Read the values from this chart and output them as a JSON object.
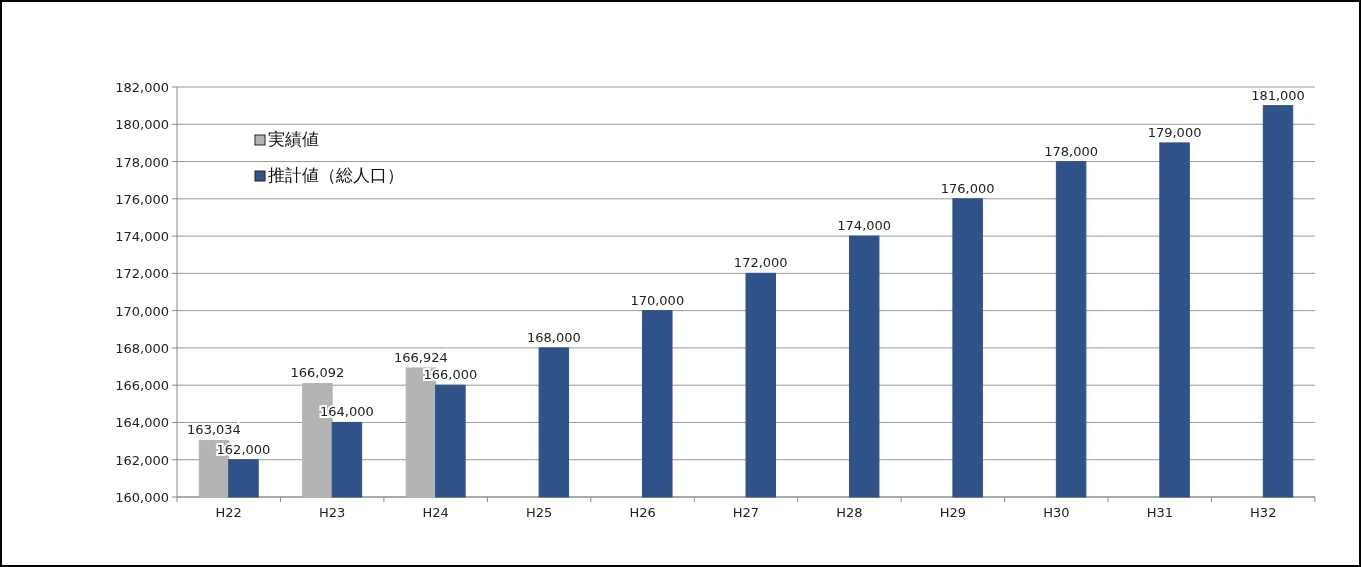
{
  "chart_data": {
    "type": "bar",
    "categories": [
      "H22",
      "H23",
      "H24",
      "H25",
      "H26",
      "H27",
      "H28",
      "H29",
      "H30",
      "H31",
      "H32"
    ],
    "series": [
      {
        "name": "実績値",
        "color": "#b4b4b4",
        "values": [
          163034,
          166092,
          166924,
          null,
          null,
          null,
          null,
          null,
          null,
          null,
          null
        ],
        "value_labels": [
          "163,034",
          "166,092",
          "166,924",
          null,
          null,
          null,
          null,
          null,
          null,
          null,
          null
        ]
      },
      {
        "name": "推計値（総人口）",
        "color": "#2f5288",
        "values": [
          162000,
          164000,
          166000,
          168000,
          170000,
          172000,
          174000,
          176000,
          178000,
          179000,
          181000
        ],
        "value_labels": [
          "162,000",
          "164,000",
          "166,000",
          "168,000",
          "170,000",
          "172,000",
          "174,000",
          "176,000",
          "178,000",
          "179,000",
          "181,000"
        ]
      }
    ],
    "ylim": [
      160000,
      182000
    ],
    "yticks": [
      {
        "value": 160000,
        "label": "160,000"
      },
      {
        "value": 162000,
        "label": "162,000"
      },
      {
        "value": 164000,
        "label": "164,000"
      },
      {
        "value": 166000,
        "label": "166,000"
      },
      {
        "value": 168000,
        "label": "168,000"
      },
      {
        "value": 170000,
        "label": "170,000"
      },
      {
        "value": 172000,
        "label": "172,000"
      },
      {
        "value": 174000,
        "label": "174,000"
      },
      {
        "value": 176000,
        "label": "176,000"
      },
      {
        "value": 178000,
        "label": "178,000"
      },
      {
        "value": 180000,
        "label": "180,000"
      },
      {
        "value": 182000,
        "label": "182,000"
      }
    ],
    "grid": "y",
    "legend": "top left"
  }
}
